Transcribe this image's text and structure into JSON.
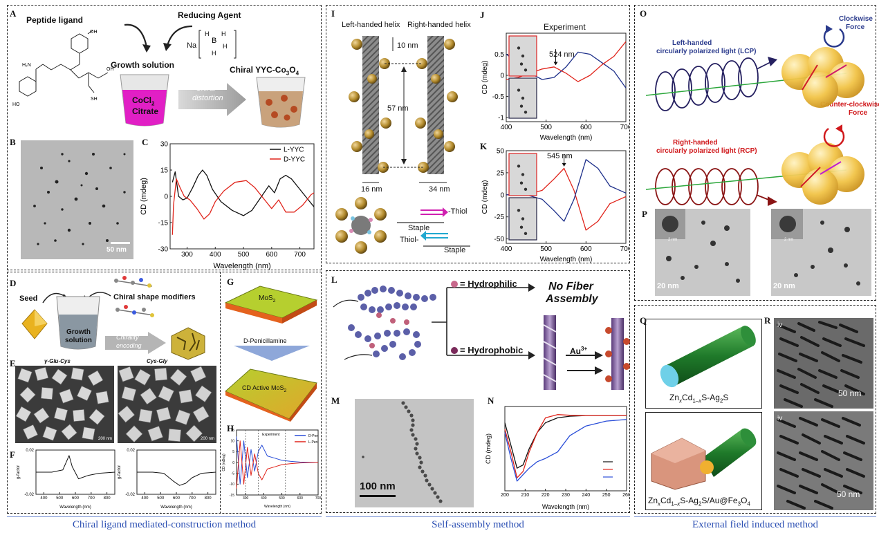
{
  "panels": {
    "A": {
      "letter": "A",
      "peptide_ligand": "Peptide ligand",
      "reducing_agent": "Reducing Agent",
      "na": "Na",
      "growth_solution": "Growth solution",
      "cocl2": "CoCl",
      "cocl2_sub": "2",
      "citrate": "Citrate",
      "chiral": "Chiral",
      "distortion": "distortion",
      "product": "Chiral YYC-Co",
      "product_sub1": "3",
      "product_mid": "O",
      "product_sub2": "4"
    },
    "B": {
      "letter": "B",
      "scale": "50 nm"
    },
    "C": {
      "letter": "C",
      "ylabel": "CD (mdeg)",
      "xlabel": "Wavelength (nm)",
      "legend": [
        "L-YYC",
        "D-YYC"
      ]
    },
    "D": {
      "letter": "D",
      "seed": "Seed",
      "modifiers": "Chiral shape modifiers",
      "growth": "Growth",
      "solution": "solution",
      "chirality": "Chirality",
      "encoding": "encoding"
    },
    "E": {
      "letter": "E",
      "left": "γ-Glu-Cys",
      "right": "Cys-Gly",
      "scale": "200 nm"
    },
    "F": {
      "letter": "F",
      "ylabel": "g-factor",
      "xlabel": "Wavelength (nm)"
    },
    "G": {
      "letter": "G",
      "mos2": "MoS",
      "mos2_sub": "2",
      "d_pen": "D-Penicillamine",
      "cd_active": "CD Active MoS",
      "cd_active_sub": "2"
    },
    "H": {
      "letter": "H",
      "experiment": "Experiment",
      "ylabel": "CD (mDeg)",
      "xlabel": "Wavelength (nm)",
      "legend": [
        "D-Pen",
        "L-Pen"
      ]
    },
    "I": {
      "letter": "I",
      "left_helix": "Left-handed helix",
      "right_helix": "Right-handed helix",
      "d10": "10 nm",
      "d57": "57 nm",
      "d16": "16 nm",
      "d34": "34 nm",
      "thiol_r": "-Thiol",
      "staple1": "Staple",
      "thiol_l": "Thiol-",
      "staple2": "Staple"
    },
    "J": {
      "letter": "J",
      "title": "Experiment",
      "peak": "524 nm",
      "ylabel": "CD (mdeg)",
      "xlabel": "Wavelength (nm)"
    },
    "K": {
      "letter": "K",
      "peak": "545 nm",
      "ylabel": "CD (mdeg)",
      "xlabel": "Wavelength (nm)"
    },
    "L": {
      "letter": "L",
      "hydrophilic": "= Hydrophilic",
      "hydrophobic": "= Hydrophobic",
      "no_fiber": "No Fiber",
      "assembly": "Assembly",
      "au": "Au",
      "au_sup": "3+"
    },
    "M": {
      "letter": "M",
      "scale": "100 nm"
    },
    "N": {
      "letter": "N",
      "ylabel": "CD (mdeg)",
      "xlabel": "Wavelength (nm)"
    },
    "O": {
      "letter": "O",
      "clockwise": "Clockwise",
      "force": "Force",
      "lcp1": "Left-handed",
      "lcp2": "circularly polarized light (LCP)",
      "ccw": "Counter-clockwise",
      "force2": "Force",
      "rcp1": "Right-handed",
      "rcp2": "circularly polarized light (RCP)"
    },
    "P": {
      "letter": "P",
      "scale1": "20 nm",
      "scale2": "20 nm",
      "inset1": "2 nm",
      "inset2": "2 nm"
    },
    "Q": {
      "letter": "Q",
      "rod1": "Zn",
      "rod2": "Zn"
    },
    "R": {
      "letter": "R",
      "scale1": "50 nm",
      "scale2": "50 nm",
      "iv": "iv"
    }
  },
  "captions": {
    "left": "Chiral ligand mediated-construction method",
    "middle": "Self-assembly method",
    "right": "External field induced method"
  },
  "chart_data": [
    {
      "type": "line",
      "id": "C",
      "xlabel": "Wavelength (nm)",
      "ylabel": "CD (mdeg)",
      "xlim": [
        240,
        750
      ],
      "ylim": [
        -30,
        30
      ],
      "xticks": [
        300,
        400,
        500,
        600,
        700
      ],
      "yticks": [
        -30,
        -15,
        0,
        15,
        30
      ],
      "series": [
        {
          "name": "L-YYC",
          "color": "#111111",
          "x": [
            248,
            258,
            270,
            285,
            300,
            320,
            340,
            355,
            370,
            390,
            420,
            460,
            500,
            530,
            560,
            590,
            610,
            630,
            650,
            670,
            700,
            730,
            750
          ],
          "y": [
            8,
            14,
            0,
            -2,
            -1,
            5,
            12,
            15,
            12,
            4,
            -3,
            -8,
            -11,
            -8,
            -1,
            6,
            2,
            10,
            12,
            10,
            4,
            -2,
            -6
          ]
        },
        {
          "name": "D-YYC",
          "color": "#e0241b",
          "x": [
            248,
            252,
            262,
            275,
            290,
            310,
            335,
            360,
            380,
            400,
            430,
            470,
            510,
            540,
            570,
            600,
            625,
            650,
            680,
            710,
            740,
            750
          ],
          "y": [
            -22,
            -5,
            10,
            5,
            0,
            -2,
            -7,
            -13,
            -10,
            -3,
            3,
            8,
            9,
            5,
            -1,
            -7,
            -2,
            -9,
            -9,
            -5,
            1,
            2
          ]
        }
      ]
    },
    {
      "type": "line",
      "id": "F",
      "xlabel": "Wavelength (nm)",
      "ylabel": "g-factor",
      "xlim": [
        350,
        850
      ],
      "ylim": [
        -0.02,
        0.02
      ],
      "xticks": [
        400,
        500,
        600,
        700,
        800
      ],
      "yticks": [
        -0.02,
        0.02
      ],
      "series": [
        {
          "name": "",
          "x": [
            350,
            450,
            520,
            560,
            580,
            620,
            680,
            750,
            850
          ],
          "y": [
            0,
            0,
            0.002,
            0.015,
            0.005,
            -0.006,
            -0.003,
            -0.001,
            0
          ]
        },
        {
          "name": "",
          "x": [
            350,
            450,
            520,
            580,
            620,
            660,
            700,
            760,
            850
          ],
          "y": [
            0,
            0,
            -0.001,
            -0.008,
            -0.012,
            -0.01,
            -0.005,
            -0.001,
            0
          ]
        }
      ]
    },
    {
      "type": "line",
      "id": "H",
      "xlabel": "Wavelength (nm)",
      "ylabel": "CD (mDeg)",
      "xlim": [
        250,
        700
      ],
      "ylim": [
        -15,
        15
      ],
      "xticks": [
        300,
        400,
        500,
        600,
        700
      ],
      "yticks": [
        -15,
        -10,
        -5,
        0,
        5,
        10,
        15
      ],
      "series": [
        {
          "name": "D-Pen",
          "color": "#2a4ed8",
          "x": [
            250,
            270,
            290,
            310,
            330,
            350,
            370,
            390,
            420,
            460,
            500,
            550,
            600,
            650,
            700
          ],
          "y": [
            12,
            -10,
            10,
            -7,
            6,
            -4,
            5,
            8,
            3,
            2,
            1,
            0.5,
            0.2,
            0.1,
            0
          ]
        },
        {
          "name": "L-Pen",
          "color": "#e0241b",
          "x": [
            250,
            270,
            290,
            310,
            330,
            350,
            370,
            390,
            420,
            460,
            500,
            550,
            600,
            650,
            700
          ],
          "y": [
            -12,
            10,
            -10,
            7,
            -6,
            4,
            -5,
            -8,
            -3,
            -2,
            -1,
            -0.5,
            -0.2,
            -0.1,
            0
          ]
        }
      ]
    },
    {
      "type": "line",
      "id": "J",
      "title": "Experiment",
      "xlabel": "Wavelength (nm)",
      "ylabel": "CD (mdeg)",
      "xlim": [
        400,
        700
      ],
      "ylim": [
        -1.1,
        1.0
      ],
      "xticks": [
        400,
        500,
        600,
        700
      ],
      "yticks": [
        -1.0,
        -0.5,
        0.0,
        0.5
      ],
      "series": [
        {
          "name": "",
          "color": "#1d2f8a",
          "x": [
            400,
            430,
            460,
            490,
            520,
            550,
            580,
            610,
            640,
            670,
            700
          ],
          "y": [
            0.5,
            0.3,
            0.05,
            -0.1,
            -0.05,
            0.2,
            0.55,
            0.5,
            0.3,
            0.1,
            -0.3
          ]
        },
        {
          "name": "",
          "color": "#e0241b",
          "x": [
            400,
            430,
            460,
            490,
            520,
            550,
            580,
            610,
            640,
            670,
            700
          ],
          "y": [
            -0.1,
            -0.05,
            0.05,
            0.15,
            0.2,
            0.05,
            -0.15,
            0.0,
            0.25,
            0.45,
            0.8
          ]
        }
      ]
    },
    {
      "type": "line",
      "id": "K",
      "xlabel": "Wavelength (nm)",
      "ylabel": "CD (mdeg)",
      "xlim": [
        400,
        700
      ],
      "ylim": [
        -55,
        50
      ],
      "xticks": [
        400,
        500,
        600,
        700
      ],
      "yticks": [
        -50,
        -25,
        0,
        25,
        50
      ],
      "series": [
        {
          "name": "",
          "color": "#e0241b",
          "x": [
            400,
            450,
            490,
            520,
            545,
            570,
            600,
            630,
            660,
            700
          ],
          "y": [
            0,
            0,
            5,
            18,
            30,
            5,
            -40,
            -30,
            -10,
            -2
          ]
        },
        {
          "name": "",
          "color": "#1d2f8a",
          "x": [
            400,
            450,
            490,
            520,
            545,
            570,
            600,
            630,
            660,
            700
          ],
          "y": [
            0,
            0,
            -5,
            -18,
            -30,
            -5,
            40,
            30,
            10,
            2
          ]
        }
      ]
    },
    {
      "type": "line",
      "id": "N",
      "xlabel": "Wavelength (nm)",
      "ylabel": "CD (mdeg)",
      "xlim": [
        200,
        260
      ],
      "xticks": [
        200,
        210,
        220,
        230,
        240,
        250,
        260
      ],
      "series": [
        {
          "name": "",
          "color": "#111111",
          "x": [
            200,
            203,
            206,
            209,
            212,
            216,
            220,
            226,
            232,
            240,
            250,
            260
          ],
          "y": [
            -1,
            -8,
            -15,
            -14,
            -9,
            -4,
            -1,
            0.5,
            1.0,
            1.2,
            1.2,
            1.2
          ]
        },
        {
          "name": "",
          "color": "#e0241b",
          "x": [
            200,
            203,
            206,
            209,
            212,
            216,
            220,
            226,
            232,
            240,
            250,
            260
          ],
          "y": [
            -3,
            -10,
            -18,
            -16,
            -10,
            -4,
            0.5,
            1.5,
            1.3,
            1.2,
            1.2,
            1.2
          ]
        },
        {
          "name": "",
          "color": "#2a4ed8",
          "x": [
            200,
            203,
            206,
            209,
            212,
            216,
            220,
            226,
            232,
            240,
            250,
            260
          ],
          "y": [
            -4,
            -12,
            -19,
            -17,
            -15,
            -13,
            -12,
            -10,
            -5,
            -2,
            -0.5,
            0
          ]
        }
      ]
    }
  ]
}
